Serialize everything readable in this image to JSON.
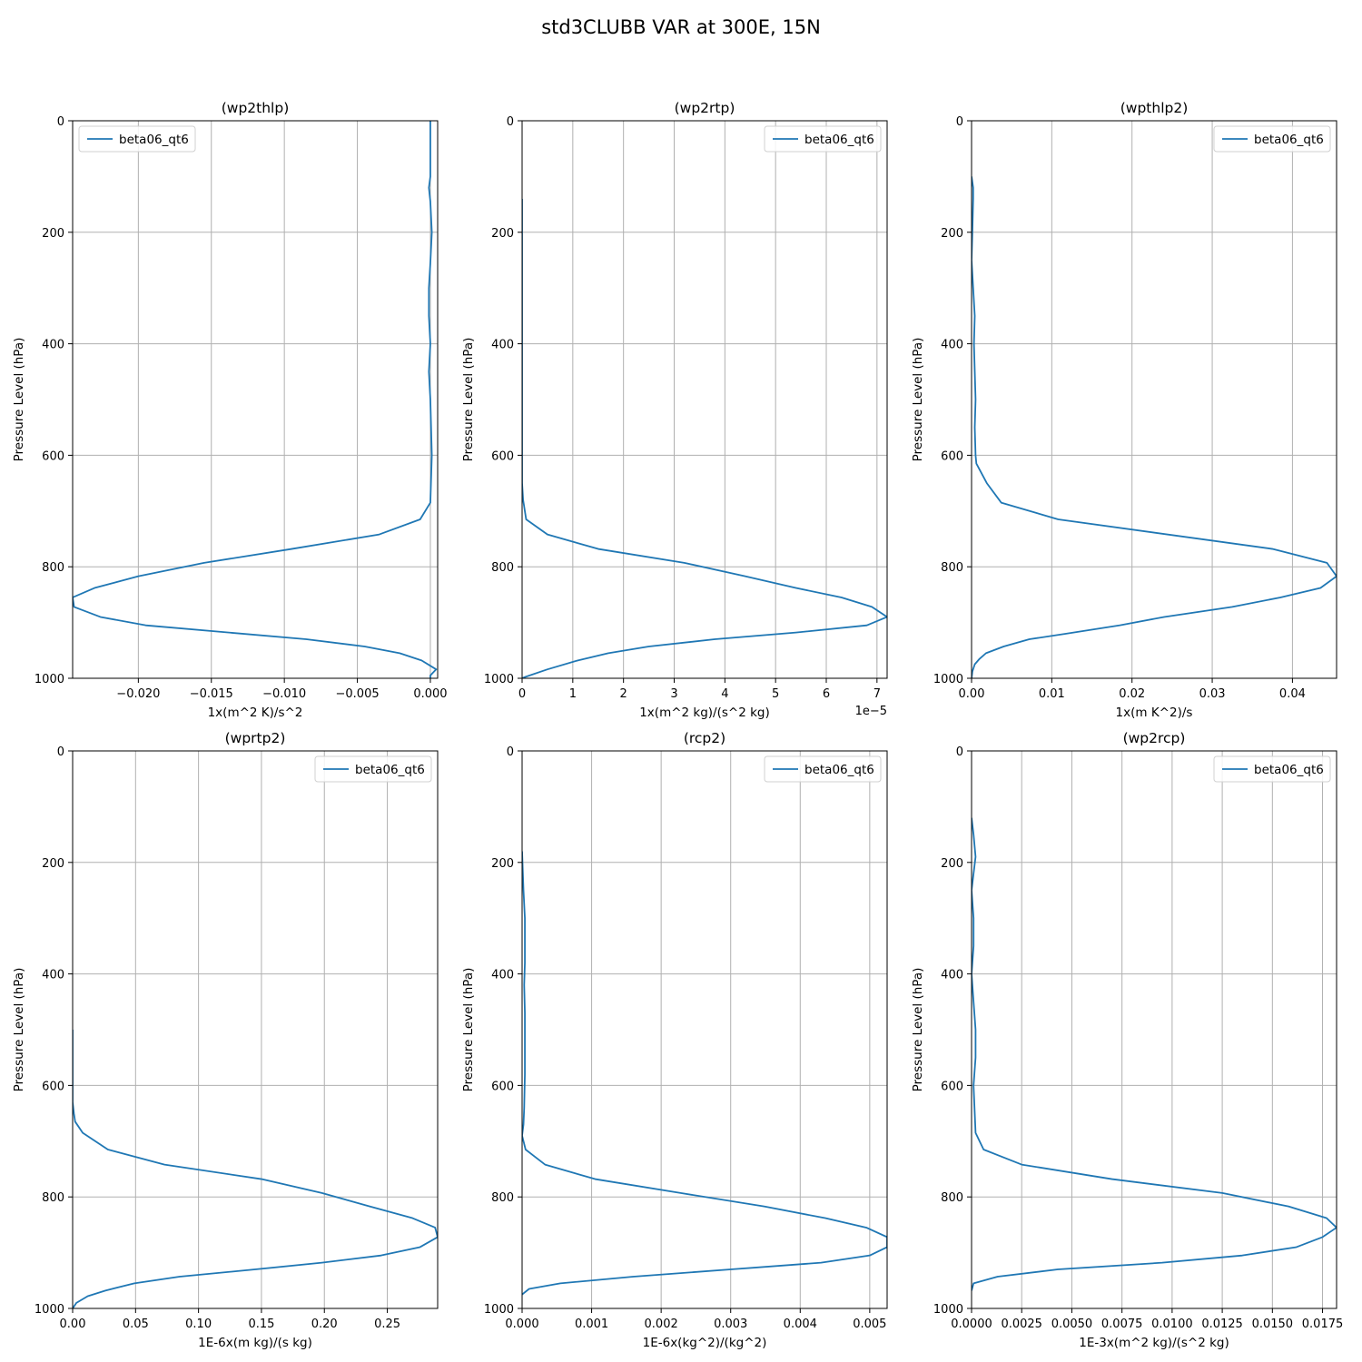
{
  "figure": {
    "title": "std3CLUBB VAR at 300E, 15N"
  },
  "style": {
    "series_color": "#1f77b4",
    "grid_color": "#b0b0b0"
  },
  "chart_data": [
    {
      "type": "line",
      "title": "(wp2thlp)",
      "xlabel": "1x(m^2 K)/s^2",
      "ylabel": "Pressure Level (hPa)",
      "xlim": [
        -0.0245,
        0.0005
      ],
      "ylim": [
        1000,
        0
      ],
      "xticks": [
        -0.02,
        -0.015,
        -0.01,
        -0.005,
        0.0
      ],
      "xtick_labels": [
        "−0.020",
        "−0.015",
        "−0.010",
        "−0.005",
        "0.000"
      ],
      "yticks": [
        0,
        200,
        400,
        600,
        800,
        1000
      ],
      "ytick_labels": [
        "0",
        "200",
        "400",
        "600",
        "800",
        "1000"
      ],
      "x_offset_label": "",
      "grid": true,
      "legend": "upper left",
      "series": [
        {
          "name": "beta06_qt6",
          "x": [
            0.0,
            0.0,
            0.0,
            -0.0001,
            0.0,
            0.0001,
            0.0,
            -0.0001,
            -0.0001,
            0.0,
            -0.0001,
            0.0,
            0.0001,
            0.0,
            -0.0007,
            -0.0035,
            -0.0095,
            -0.0155,
            -0.02,
            -0.023,
            -0.0245,
            -0.0244,
            -0.0226,
            -0.0195,
            -0.0085,
            -0.0045,
            -0.0021,
            -0.0006,
            0.0004,
            0.0,
            0.0
          ],
          "y": [
            0,
            50,
            100,
            120,
            145,
            200,
            255,
            300,
            350,
            400,
            450,
            500,
            600,
            685,
            715,
            742,
            768,
            793,
            817,
            838,
            855,
            872,
            890,
            905,
            930,
            943,
            955,
            968,
            984,
            995,
            1000
          ]
        }
      ]
    },
    {
      "type": "line",
      "title": "(wp2rtp)",
      "xlabel": "1x(m^2 kg)/(s^2 kg)",
      "ylabel": "Pressure Level (hPa)",
      "xlim": [
        0,
        7.2
      ],
      "ylim": [
        1000,
        0
      ],
      "xticks": [
        0,
        1,
        2,
        3,
        4,
        5,
        6,
        7
      ],
      "xtick_labels": [
        "0",
        "1",
        "2",
        "3",
        "4",
        "5",
        "6",
        "7"
      ],
      "yticks": [
        0,
        200,
        400,
        600,
        800,
        1000
      ],
      "ytick_labels": [
        "0",
        "200",
        "400",
        "600",
        "800",
        "1000"
      ],
      "x_offset_label": "1e−5",
      "grid": true,
      "legend": "upper right",
      "series": [
        {
          "name": "beta06_qt6",
          "x": [
            0.0,
            0.0,
            0.0,
            0.0,
            0.0,
            0.0,
            0.0,
            0.02,
            0.08,
            0.5,
            1.5,
            3.2,
            4.4,
            5.4,
            6.3,
            6.9,
            7.2,
            6.8,
            5.4,
            3.8,
            2.5,
            1.7,
            1.1,
            0.5,
            0.05,
            0.0
          ],
          "y": [
            140,
            200,
            300,
            400,
            500,
            600,
            650,
            680,
            715,
            742,
            768,
            793,
            817,
            838,
            855,
            872,
            890,
            905,
            918,
            930,
            943,
            955,
            968,
            984,
            998,
            1000
          ]
        }
      ]
    },
    {
      "type": "line",
      "title": "(wpthlp2)",
      "xlabel": "1x(m K^2)/s",
      "ylabel": "Pressure Level (hPa)",
      "xlim": [
        0,
        0.0455
      ],
      "ylim": [
        1000,
        0
      ],
      "xticks": [
        0.0,
        0.01,
        0.02,
        0.03,
        0.04
      ],
      "xtick_labels": [
        "0.00",
        "0.01",
        "0.02",
        "0.03",
        "0.04"
      ],
      "yticks": [
        0,
        200,
        400,
        600,
        800,
        1000
      ],
      "ytick_labels": [
        "0",
        "200",
        "400",
        "600",
        "800",
        "1000"
      ],
      "x_offset_label": "",
      "grid": true,
      "legend": "upper right",
      "series": [
        {
          "name": "beta06_qt6",
          "x": [
            0.0,
            0.0002,
            0.0002,
            0.0001,
            0.0,
            0.0002,
            0.0004,
            0.0003,
            0.0004,
            0.0005,
            0.0004,
            0.0005,
            0.0006,
            0.0019,
            0.0037,
            0.0108,
            0.0375,
            0.0443,
            0.0455,
            0.0435,
            0.0385,
            0.0325,
            0.024,
            0.0185,
            0.0118,
            0.0072,
            0.004,
            0.0018,
            0.001,
            0.0004,
            0.0001,
            0.0
          ],
          "y": [
            100,
            120,
            140,
            200,
            250,
            300,
            350,
            400,
            450,
            500,
            550,
            600,
            615,
            650,
            685,
            715,
            768,
            793,
            817,
            838,
            855,
            872,
            890,
            905,
            920,
            930,
            943,
            955,
            965,
            975,
            988,
            1000
          ]
        }
      ]
    },
    {
      "type": "line",
      "title": "(wprtp2)",
      "xlabel": "1E-6x(m kg)/(s kg)",
      "ylabel": "Pressure Level (hPa)",
      "xlim": [
        0,
        0.29
      ],
      "ylim": [
        1000,
        0
      ],
      "xticks": [
        0.0,
        0.05,
        0.1,
        0.15,
        0.2,
        0.25
      ],
      "xtick_labels": [
        "0.00",
        "0.05",
        "0.10",
        "0.15",
        "0.20",
        "0.25"
      ],
      "yticks": [
        0,
        200,
        400,
        600,
        800,
        1000
      ],
      "ytick_labels": [
        "0",
        "200",
        "400",
        "600",
        "800",
        "1000"
      ],
      "x_offset_label": "",
      "grid": true,
      "legend": "upper right",
      "series": [
        {
          "name": "beta06_qt6",
          "x": [
            0.0,
            0.0,
            0.0,
            0.0,
            0.001,
            0.002,
            0.008,
            0.028,
            0.073,
            0.15,
            0.198,
            0.236,
            0.27,
            0.288,
            0.29,
            0.276,
            0.245,
            0.198,
            0.145,
            0.085,
            0.049,
            0.026,
            0.012,
            0.003,
            0.0
          ],
          "y": [
            500,
            550,
            600,
            630,
            650,
            665,
            685,
            715,
            742,
            768,
            793,
            817,
            838,
            855,
            872,
            890,
            905,
            918,
            930,
            943,
            955,
            968,
            978,
            990,
            1000
          ]
        }
      ]
    },
    {
      "type": "line",
      "title": "(rcp2)",
      "xlabel": "1E-6x(kg^2)/(kg^2)",
      "ylabel": "Pressure Level (hPa)",
      "xlim": [
        0,
        0.00525
      ],
      "ylim": [
        1000,
        0
      ],
      "xticks": [
        0.0,
        0.001,
        0.002,
        0.003,
        0.004,
        0.005
      ],
      "xtick_labels": [
        "0.000",
        "0.001",
        "0.002",
        "0.003",
        "0.004",
        "0.005"
      ],
      "yticks": [
        0,
        200,
        400,
        600,
        800,
        1000
      ],
      "ytick_labels": [
        "0",
        "200",
        "400",
        "600",
        "800",
        "1000"
      ],
      "x_offset_label": "",
      "grid": true,
      "legend": "upper right",
      "series": [
        {
          "name": "beta06_qt6",
          "x": [
            0.0,
            2e-05,
            4e-05,
            4e-05,
            3e-05,
            4e-05,
            4e-05,
            4e-05,
            3e-05,
            2e-05,
            0.0,
            5e-05,
            0.00033,
            0.00105,
            0.00228,
            0.00348,
            0.00436,
            0.00495,
            0.00525,
            0.00525,
            0.005,
            0.0043,
            0.003,
            0.0016,
            0.00055,
            0.0001,
            0.0
          ],
          "y": [
            180,
            250,
            300,
            380,
            420,
            470,
            520,
            580,
            640,
            670,
            690,
            715,
            742,
            768,
            793,
            817,
            838,
            855,
            872,
            890,
            905,
            918,
            930,
            943,
            955,
            965,
            975
          ]
        }
      ]
    },
    {
      "type": "line",
      "title": "(wp2rcp)",
      "xlabel": "1E-3x(m^2 kg)/(s^2 kg)",
      "ylabel": "Pressure Level (hPa)",
      "xlim": [
        0,
        0.0182
      ],
      "ylim": [
        1000,
        0
      ],
      "xticks": [
        0.0,
        0.0025,
        0.005,
        0.0075,
        0.01,
        0.0125,
        0.015,
        0.0175
      ],
      "xtick_labels": [
        "0.0000",
        "0.0025",
        "0.0050",
        "0.0075",
        "0.0100",
        "0.0125",
        "0.0150",
        "0.0175"
      ],
      "yticks": [
        0,
        200,
        400,
        600,
        800,
        1000
      ],
      "ytick_labels": [
        "0",
        "200",
        "400",
        "600",
        "800",
        "1000"
      ],
      "x_offset_label": "",
      "grid": true,
      "legend": "upper right",
      "series": [
        {
          "name": "beta06_qt6",
          "x": [
            0.0,
            0.0001,
            0.0002,
            0.0001,
            0.0,
            0.0001,
            0.0001,
            0.0,
            0.0001,
            0.0002,
            0.0002,
            0.0001,
            0.0002,
            0.0006,
            0.0025,
            0.007,
            0.0125,
            0.0158,
            0.0177,
            0.0182,
            0.0175,
            0.0162,
            0.0135,
            0.0095,
            0.0043,
            0.0013,
            0.0001,
            0.0
          ],
          "y": [
            120,
            150,
            190,
            220,
            250,
            300,
            350,
            400,
            450,
            500,
            550,
            600,
            685,
            715,
            742,
            768,
            793,
            817,
            838,
            855,
            872,
            890,
            905,
            918,
            930,
            943,
            955,
            968
          ]
        }
      ]
    }
  ]
}
